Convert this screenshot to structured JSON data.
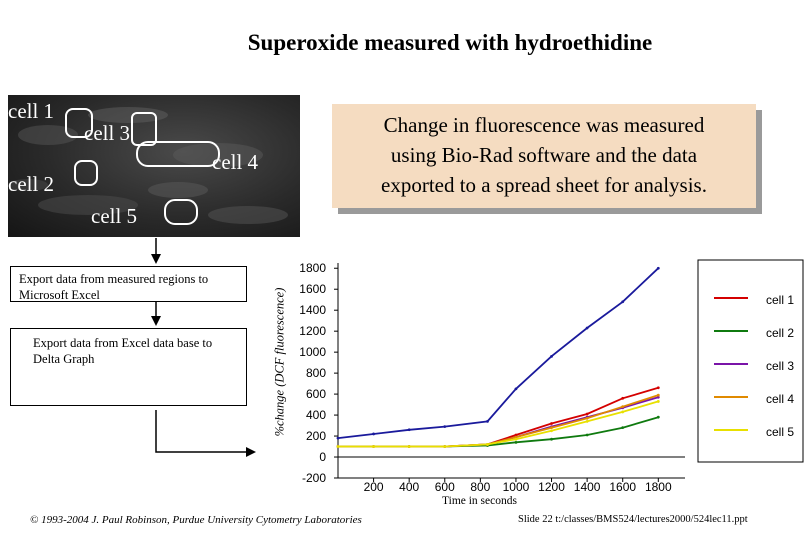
{
  "title": "Superoxide measured with hydroethidine",
  "micro_labels": {
    "cell1": "cell 1",
    "cell2": "cell 2",
    "cell3": "cell 3",
    "cell4": "cell 4",
    "cell5": "cell 5"
  },
  "callout": {
    "line1": "Change in fluorescence was measured",
    "line2": "using Bio-Rad software and the data",
    "line3": "exported to a spread sheet for analysis."
  },
  "flow": {
    "step1": "Export data from measured regions to Microsoft Excel",
    "step2": "Export data from Excel data base to Delta Graph"
  },
  "footer": {
    "left": "© 1993-2004 J. Paul Robinson, Purdue University Cytometry Laboratories",
    "right": "Slide 22 t:/classes/BMS524/lectures2000/524lec11.ppt"
  },
  "chart_data": {
    "type": "line",
    "xlabel": "Time in seconds",
    "ylabel": "%change (DCF fluorescence)",
    "xlim": [
      0,
      1950
    ],
    "ylim": [
      -200,
      1850
    ],
    "y_ticks": [
      "1800",
      "1600",
      "1400",
      "1200",
      "1000",
      "800",
      "600",
      "400",
      "200",
      "0",
      "-200"
    ],
    "x_ticks": [
      "200",
      "400",
      "600",
      "800",
      "1000",
      "1200",
      "1400",
      "1600",
      "1800"
    ],
    "series": [
      {
        "name": "cell 1",
        "color": "#d40000",
        "x": [
          0,
          200,
          400,
          600,
          840,
          1000,
          1200,
          1400,
          1600,
          1800
        ],
        "y": [
          100,
          100,
          100,
          100,
          120,
          210,
          320,
          410,
          560,
          660
        ]
      },
      {
        "name": "cell 2",
        "color": "#0f7a0f",
        "x": [
          0,
          200,
          400,
          600,
          840,
          1000,
          1200,
          1400,
          1600,
          1800
        ],
        "y": [
          100,
          100,
          100,
          100,
          110,
          140,
          170,
          210,
          280,
          380
        ]
      },
      {
        "name": "cell 3",
        "color": "#7a14a8",
        "x": [
          0,
          200,
          400,
          600,
          840,
          1000,
          1200,
          1400,
          1600,
          1800
        ],
        "y": [
          100,
          100,
          100,
          100,
          120,
          190,
          290,
          380,
          470,
          570
        ]
      },
      {
        "name": "cell 4",
        "color": "#e08a00",
        "x": [
          0,
          200,
          400,
          600,
          840,
          1000,
          1200,
          1400,
          1600,
          1800
        ],
        "y": [
          100,
          100,
          100,
          100,
          120,
          190,
          280,
          370,
          480,
          590
        ]
      },
      {
        "name": "cell 5",
        "color": "#e8e000",
        "x": [
          0,
          200,
          400,
          600,
          840,
          1000,
          1200,
          1400,
          1600,
          1800
        ],
        "y": [
          100,
          100,
          100,
          100,
          120,
          170,
          250,
          340,
          430,
          530
        ]
      },
      {
        "name": "",
        "color": "#1a1a9c",
        "x": [
          0,
          200,
          400,
          600,
          840,
          1000,
          1200,
          1400,
          1600,
          1800
        ],
        "y": [
          180,
          220,
          260,
          290,
          340,
          650,
          960,
          1230,
          1480,
          1800
        ]
      }
    ],
    "legend": [
      "cell 1",
      "cell 2",
      "cell 3",
      "cell 4",
      "cell 5"
    ]
  }
}
